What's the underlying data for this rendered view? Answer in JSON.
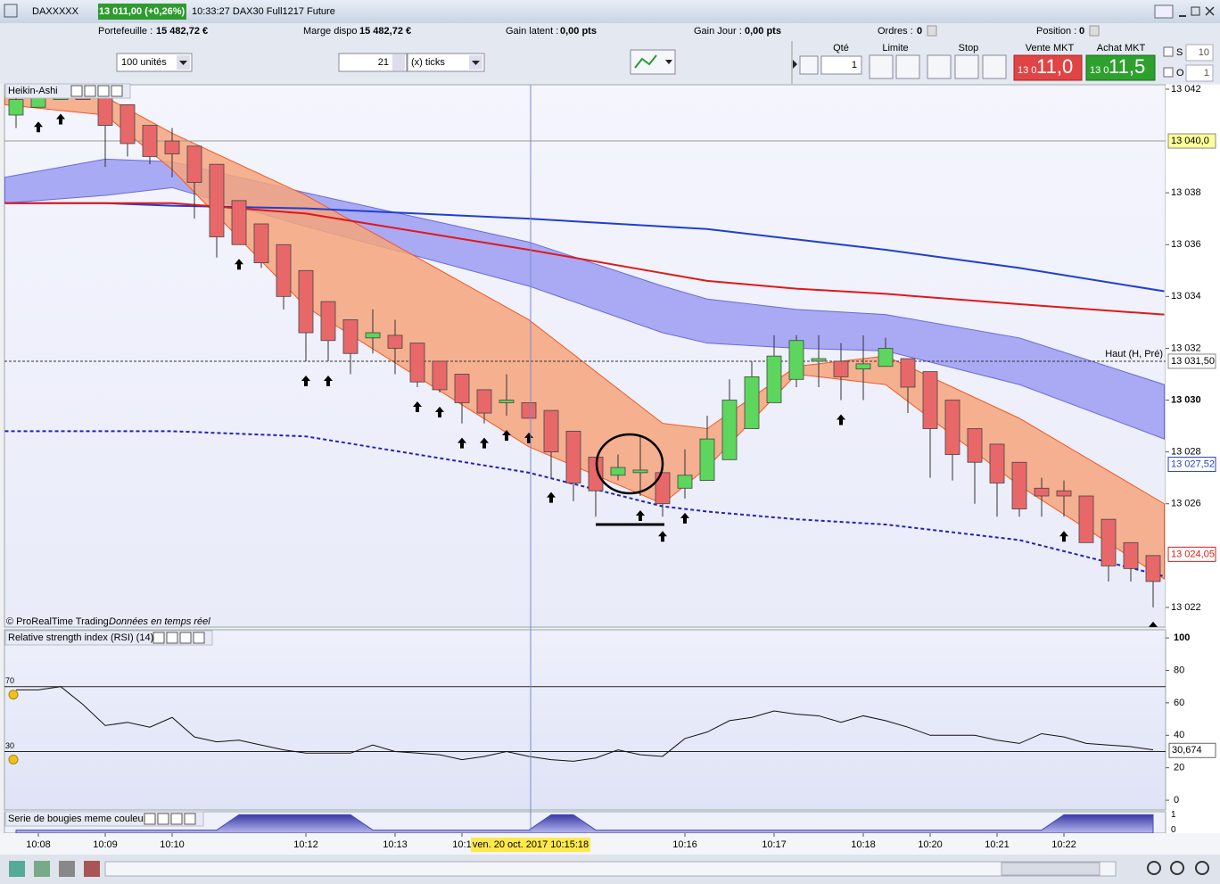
{
  "window": {
    "symbol": "DAXXXXX",
    "price": "13 011,00 (+0,26%)",
    "info": "10:33:27 DAX30 Full1217 Future"
  },
  "account": {
    "portefeuille_label": "Portefeuille :",
    "portefeuille": "15 482,72 €",
    "marge_label": "Marge dispo",
    "marge": "15 482,72 €",
    "gain_latent_label": "Gain latent :",
    "gain_latent": "0,00 pts",
    "gain_jour_label": "Gain Jour :",
    "gain_jour": "0,00 pts",
    "ordres_label": "Ordres :",
    "ordres": "0",
    "position_label": "Position :",
    "position": "0"
  },
  "toolbar": {
    "units": "100 unités",
    "ticks_value": "21",
    "ticks_unit": "(x) ticks",
    "qty_label": "Qté",
    "qty": "1",
    "limit_label": "Limite",
    "stop_label": "Stop",
    "sell_label": "Vente MKT",
    "sell_prefix": "13 0",
    "sell_price": "11,0",
    "buy_label": "Achat MKT",
    "buy_prefix": "13 0",
    "buy_price": "11,5",
    "s_label": "S",
    "s_value": "10",
    "o_label": "O",
    "o_value": "1"
  },
  "chart_data": [
    {
      "type": "candlestick",
      "title": "Heikin-Ashi",
      "credit": "© ProRealTime Trading",
      "credit_note": "Données en temps réel",
      "up_color": "#5cd65c",
      "down_color": "#e8686a",
      "candles": [
        {
          "o": 13041.0,
          "h": 13041.7,
          "l": 13040.5,
          "c": 13041.6
        },
        {
          "o": 13041.3,
          "h": 13041.7,
          "l": 13041.3,
          "c": 13041.7
        },
        {
          "o": 13041.6,
          "h": 13041.8,
          "l": 13041.6,
          "c": 13041.8
        },
        {
          "o": 13041.8,
          "h": 13041.8,
          "l": 13041.6,
          "c": 13041.6
        },
        {
          "o": 13041.7,
          "h": 13041.7,
          "l": 13039.0,
          "c": 13040.6
        },
        {
          "o": 13041.4,
          "h": 13041.4,
          "l": 13039.4,
          "c": 13039.9
        },
        {
          "o": 13040.6,
          "h": 13040.6,
          "l": 13039.1,
          "c": 13039.4
        },
        {
          "o": 13040.0,
          "h": 13040.5,
          "l": 13038.6,
          "c": 13039.5
        },
        {
          "o": 13039.8,
          "h": 13039.8,
          "l": 13037.0,
          "c": 13038.4
        },
        {
          "o": 13039.1,
          "h": 13039.1,
          "l": 13035.5,
          "c": 13036.3
        },
        {
          "o": 13037.7,
          "h": 13037.7,
          "l": 13036.0,
          "c": 13036.0
        },
        {
          "o": 13036.8,
          "h": 13036.8,
          "l": 13035.1,
          "c": 13035.3
        },
        {
          "o": 13036.0,
          "h": 13036.0,
          "l": 13033.5,
          "c": 13034.0
        },
        {
          "o": 13035.0,
          "h": 13035.0,
          "l": 13031.5,
          "c": 13032.6
        },
        {
          "o": 13033.8,
          "h": 13033.8,
          "l": 13031.5,
          "c": 13032.3
        },
        {
          "o": 13033.1,
          "h": 13033.1,
          "l": 13031.0,
          "c": 13031.8
        },
        {
          "o": 13032.4,
          "h": 13033.5,
          "l": 13031.8,
          "c": 13032.6
        },
        {
          "o": 13032.5,
          "h": 13033.1,
          "l": 13031.0,
          "c": 13032.0
        },
        {
          "o": 13032.2,
          "h": 13032.2,
          "l": 13030.5,
          "c": 13030.7
        },
        {
          "o": 13031.5,
          "h": 13031.5,
          "l": 13030.3,
          "c": 13030.4
        },
        {
          "o": 13031.0,
          "h": 13031.0,
          "l": 13029.1,
          "c": 13029.9
        },
        {
          "o": 13030.4,
          "h": 13030.4,
          "l": 13029.1,
          "c": 13029.5
        },
        {
          "o": 13029.9,
          "h": 13031.0,
          "l": 13029.4,
          "c": 13030.0
        },
        {
          "o": 13029.9,
          "h": 13029.9,
          "l": 13029.3,
          "c": 13029.3
        },
        {
          "o": 13029.6,
          "h": 13029.6,
          "l": 13027.0,
          "c": 13028.0
        },
        {
          "o": 13028.8,
          "h": 13028.8,
          "l": 13026.1,
          "c": 13026.8
        },
        {
          "o": 13027.8,
          "h": 13027.8,
          "l": 13025.5,
          "c": 13026.5
        },
        {
          "o": 13027.1,
          "h": 13027.9,
          "l": 13026.9,
          "c": 13027.4
        },
        {
          "o": 13027.2,
          "h": 13028.6,
          "l": 13026.3,
          "c": 13027.3
        },
        {
          "o": 13027.2,
          "h": 13027.2,
          "l": 13025.5,
          "c": 13026.0
        },
        {
          "o": 13026.6,
          "h": 13028.1,
          "l": 13026.2,
          "c": 13027.1
        },
        {
          "o": 13026.9,
          "h": 13029.4,
          "l": 13026.9,
          "c": 13028.5
        },
        {
          "o": 13027.7,
          "h": 13030.8,
          "l": 13027.7,
          "c": 13030.0
        },
        {
          "o": 13028.9,
          "h": 13031.5,
          "l": 13028.9,
          "c": 13030.9
        },
        {
          "o": 13029.9,
          "h": 13032.5,
          "l": 13029.9,
          "c": 13031.7
        },
        {
          "o": 13030.8,
          "h": 13032.5,
          "l": 13030.5,
          "c": 13032.3
        },
        {
          "o": 13031.5,
          "h": 13032.5,
          "l": 13030.5,
          "c": 13031.6
        },
        {
          "o": 13031.5,
          "h": 13032.2,
          "l": 13030.0,
          "c": 13030.9
        },
        {
          "o": 13031.2,
          "h": 13032.5,
          "l": 13030.0,
          "c": 13031.4
        },
        {
          "o": 13031.3,
          "h": 13032.4,
          "l": 13031.3,
          "c": 13032.0
        },
        {
          "o": 13031.6,
          "h": 13031.6,
          "l": 13029.5,
          "c": 13030.5
        },
        {
          "o": 13031.1,
          "h": 13031.1,
          "l": 13027.0,
          "c": 13028.9
        },
        {
          "o": 13030.0,
          "h": 13030.0,
          "l": 13026.9,
          "c": 13027.9
        },
        {
          "o": 13028.9,
          "h": 13028.9,
          "l": 13026.0,
          "c": 13027.6
        },
        {
          "o": 13028.3,
          "h": 13028.3,
          "l": 13025.5,
          "c": 13026.8
        },
        {
          "o": 13027.6,
          "h": 13027.6,
          "l": 13025.5,
          "c": 13025.8
        },
        {
          "o": 13026.6,
          "h": 13027.0,
          "l": 13025.5,
          "c": 13026.3
        },
        {
          "o": 13026.5,
          "h": 13026.9,
          "l": 13025.5,
          "c": 13026.3
        },
        {
          "o": 13026.3,
          "h": 13026.3,
          "l": 13024.5,
          "c": 13024.5
        },
        {
          "o": 13025.4,
          "h": 13025.4,
          "l": 13023.0,
          "c": 13023.6
        },
        {
          "o": 13024.5,
          "h": 13024.5,
          "l": 13023.0,
          "c": 13023.5
        },
        {
          "o": 13024.0,
          "h": 13024.0,
          "l": 13022.0,
          "c": 13023.0
        }
      ],
      "x": [
        -0.5,
        4,
        7,
        13,
        23,
        29,
        31,
        35,
        39,
        45,
        51.5
      ],
      "bands": [
        {
          "color": "#9c9cf2",
          "edge": "#6a6ad8",
          "upper": [
            13038.6,
            13039.3,
            13039.2,
            13038.0,
            13036.1,
            13034.4,
            13033.9,
            13033.5,
            13033.3,
            13032.4,
            13030.6
          ],
          "lower": [
            13037.6,
            13037.9,
            13038.2,
            13036.7,
            13034.4,
            13032.6,
            13032.2,
            13032.0,
            13031.9,
            13030.6,
            13028.5
          ]
        },
        {
          "color": "#f6a47c",
          "edge": "#f05a28",
          "upper": [
            13041.7,
            13041.7,
            13040.3,
            13037.9,
            13033.1,
            13029.1,
            13028.9,
            13031.3,
            13031.7,
            13029.3,
            13026.0
          ],
          "lower": [
            13041.4,
            13041.0,
            13038.9,
            13033.6,
            13028.2,
            13026.0,
            13027.4,
            13031.0,
            13030.6,
            13026.7,
            13023.1
          ]
        }
      ],
      "lines": [
        {
          "color": "#1f3fd0",
          "dashed": false,
          "values": [
            13037.6,
            13037.6,
            13037.5,
            13037.4,
            13037.0,
            13036.7,
            13036.6,
            13036.2,
            13035.8,
            13035.1,
            13034.2
          ]
        },
        {
          "color": "#e01818",
          "dashed": false,
          "values": [
            13037.6,
            13037.6,
            13037.6,
            13037.2,
            13035.8,
            13034.9,
            13034.6,
            13034.3,
            13034.1,
            13033.7,
            13033.3
          ]
        },
        {
          "color": "#2222b8",
          "dashed": true,
          "values": [
            13028.8,
            13028.8,
            13028.8,
            13028.6,
            13027.2,
            13025.9,
            13025.7,
            13025.4,
            13025.2,
            13024.6,
            13023.2
          ]
        }
      ],
      "up_arrows": [
        1,
        2,
        10,
        13,
        14,
        18,
        19,
        20,
        21,
        22,
        23,
        24,
        28,
        29,
        30,
        37,
        47,
        51
      ],
      "xlim": [
        -0.52,
        51.56
      ],
      "ylim": [
        13021.24,
        13042.17
      ],
      "yticks": [
        {
          "value": 13042,
          "label": "13 042"
        },
        {
          "value": 13038,
          "label": "13 038"
        },
        {
          "value": 13036,
          "label": "13 036"
        },
        {
          "value": 13034,
          "label": "13 034"
        },
        {
          "value": 13032,
          "label": "13 032"
        },
        {
          "value": 13030,
          "label": "13 030"
        },
        {
          "value": 13028,
          "label": "13 028"
        },
        {
          "value": 13026,
          "label": "13 026"
        },
        {
          "value": 13022,
          "label": "13 022"
        }
      ],
      "price_markers": [
        {
          "value": 13040,
          "label": "13 040,0",
          "color": "#000000",
          "background": "#ffff99",
          "line": "solid"
        },
        {
          "value": 13031.5,
          "label": "13 031,50",
          "color": "#000000",
          "background": "#ffffff",
          "line": "dashed"
        },
        {
          "value": 13027.52,
          "label": "13 027,52",
          "color": "#1f3fd0",
          "background": "#ffffff"
        },
        {
          "value": 13024.05,
          "label": "13 024,05",
          "color": "#e01818",
          "background": "#ffffff"
        }
      ],
      "reference_label": "Haut (H, Pré)",
      "xticks": [
        {
          "value": 1,
          "label": "10:08"
        },
        {
          "value": 4,
          "label": "10:09"
        },
        {
          "value": 7,
          "label": "10:10"
        },
        {
          "value": 13,
          "label": "10:12"
        },
        {
          "value": 17,
          "label": "10:13"
        },
        {
          "value": 20,
          "label": "10:1"
        },
        {
          "value": 30,
          "label": "10:16"
        },
        {
          "value": 34,
          "label": "10:17"
        },
        {
          "value": 38,
          "label": "10:18"
        },
        {
          "value": 41,
          "label": "10:20"
        },
        {
          "value": 44,
          "label": "10:21"
        },
        {
          "value": 47,
          "label": "10:22"
        }
      ],
      "cursor": {
        "value": 23.08,
        "label": "ven. 20 oct. 2017 10:15:18"
      }
    },
    {
      "type": "line",
      "title": "Relative strength index (RSI) (14)",
      "color": "#111111",
      "values": [
        68,
        68,
        70,
        59,
        46,
        48,
        45,
        51,
        39,
        36,
        37,
        34,
        31,
        29,
        29,
        29,
        34,
        30,
        29,
        28,
        25,
        27,
        30,
        27,
        25,
        24,
        26,
        31,
        28,
        27,
        38,
        42,
        49,
        51,
        55,
        53,
        52,
        48,
        52,
        49,
        45,
        40,
        40,
        40,
        37,
        35,
        41,
        39,
        35,
        34,
        33,
        31
      ],
      "ylim": [
        -6,
        105
      ],
      "yticks": [
        100,
        80,
        60,
        40,
        20,
        0
      ],
      "levels": [
        {
          "value": 70,
          "label": "70"
        },
        {
          "value": 30,
          "label": "30"
        }
      ],
      "current": {
        "value": 30.674,
        "label": "30,674"
      }
    },
    {
      "type": "area",
      "title": "Serie de bougies meme couleur",
      "color": "#4a4ab8",
      "values": [
        0,
        0,
        0,
        0,
        0,
        0,
        0,
        0,
        0,
        0,
        1,
        1,
        1,
        1,
        1,
        1,
        0,
        0,
        0,
        0,
        0,
        0,
        0,
        0,
        1,
        1,
        0,
        0,
        0,
        0,
        0,
        0,
        0,
        0,
        0,
        0,
        0,
        0,
        0,
        0,
        0,
        0,
        0,
        0,
        0,
        0,
        0,
        1,
        1,
        1,
        1,
        1
      ],
      "ylim": [
        -0.2,
        1.2
      ],
      "yticks": [
        1,
        0
      ]
    }
  ]
}
